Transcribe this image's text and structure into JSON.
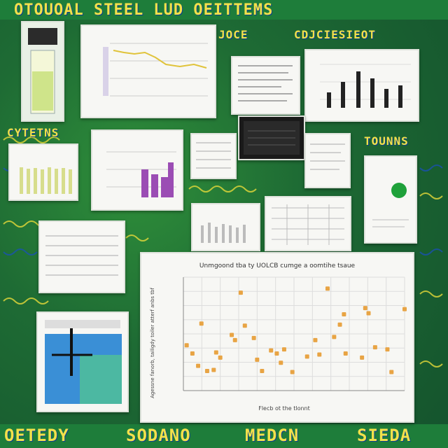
{
  "banner": {
    "top": "OTOUOAL STEEL LUD OEITTEMS",
    "left_mid": "CYTETNS",
    "right_mid": "TOUNNS",
    "center_small": "JOCE",
    "center_right": "CDJCIESIEOT",
    "bottom_left": "OETEDY",
    "bottom_mid": "SODANO",
    "bottom_right": "MEDCN",
    "bottom_far": "SIEDA"
  },
  "scatter": {
    "title": "Unmgoond tba ty UOLCB cumge a oomtihe tsaue",
    "ylabel": "Agessne fanorb, tailigdy toiler atterf anbs tbf",
    "xlabel": "Flecb ot the tlonnt",
    "color": "#e8a444"
  },
  "chart_data": {
    "type": "scatter",
    "title": "Unmgoond tba ty UOLCB cumge a oomtihe tsaue",
    "xlabel": "Flecb ot the tlonnt",
    "ylabel": "Agessne fanorb, tailigdy toiler atterf anbs tbf",
    "grid": true,
    "points": [
      [
        0.4,
        4.4
      ],
      [
        1.1,
        3.6
      ],
      [
        1.8,
        2.4
      ],
      [
        2.2,
        6.5
      ],
      [
        2.9,
        1.9
      ],
      [
        3.7,
        2.0
      ],
      [
        4.0,
        3.7
      ],
      [
        4.5,
        3.2
      ],
      [
        5.9,
        5.4
      ],
      [
        6.3,
        4.9
      ],
      [
        7.0,
        9.5
      ],
      [
        7.5,
        6.3
      ],
      [
        8.6,
        5.1
      ],
      [
        9.0,
        3.0
      ],
      [
        9.6,
        1.9
      ],
      [
        10.7,
        3.9
      ],
      [
        11.4,
        3.6
      ],
      [
        11.9,
        2.7
      ],
      [
        12.3,
        4.0
      ],
      [
        13.3,
        1.8
      ],
      [
        15.1,
        3.3
      ],
      [
        16.1,
        4.9
      ],
      [
        16.6,
        3.5
      ],
      [
        17.6,
        9.9
      ],
      [
        18.4,
        5.2
      ],
      [
        19.1,
        6.4
      ],
      [
        19.6,
        7.4
      ],
      [
        19.8,
        3.6
      ],
      [
        21.8,
        3.2
      ],
      [
        22.2,
        8.0
      ],
      [
        22.6,
        7.5
      ],
      [
        23.4,
        4.2
      ],
      [
        24.9,
        4.0
      ],
      [
        25.4,
        1.8
      ],
      [
        27.0,
        7.9
      ]
    ],
    "xlim": [
      0,
      27
    ],
    "ylim": [
      0,
      11
    ]
  },
  "panels": {
    "bar_chart_panel": "small bar chart",
    "line_chart_panel": "line chart"
  }
}
